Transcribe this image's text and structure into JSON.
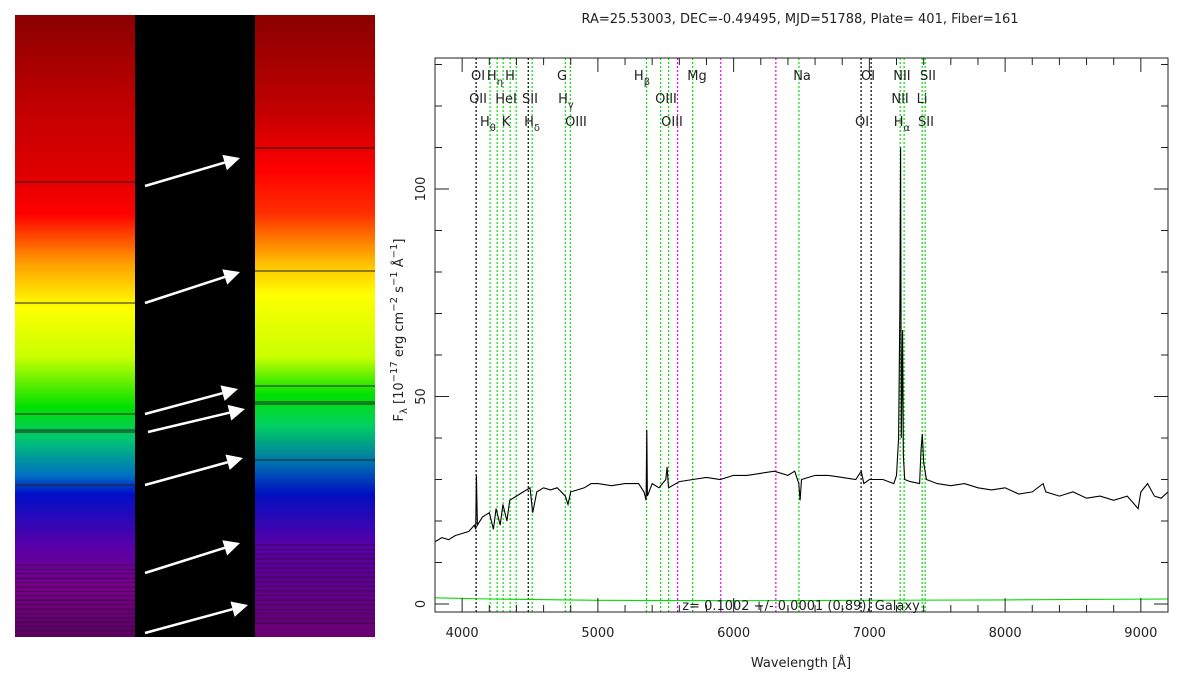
{
  "colors": {
    "spectrum": "#000000",
    "error": "#00dd00",
    "line_green": "#00e000",
    "line_black": "#000000",
    "line_magenta": "#ee00ee",
    "arrow": "#ffffff"
  },
  "chart_data": {
    "type": "line",
    "title": "RA=25.53003, DEC=-0.49495, MJD=51788, Plate= 401, Fiber=161",
    "xlabel": "Wavelength [Å]",
    "ylabel": {
      "main": "F",
      "sub": "λ",
      "a": " [10",
      "e1": "−17",
      "b": " erg cm",
      "e2": "−2",
      "c": " s",
      "e3": "−1",
      "d": " Å",
      "e4": "−1",
      "e": "]"
    },
    "xlim": [
      3800,
      9200
    ],
    "ylim": [
      -2,
      132
    ],
    "xticks": [
      "4000",
      "5000",
      "6000",
      "7000",
      "8000",
      "9000"
    ],
    "xtick_values": [
      4000,
      5000,
      6000,
      7000,
      8000,
      9000
    ],
    "yticks": [
      "0",
      "50",
      "100"
    ],
    "ytick_values": [
      0,
      50,
      100
    ],
    "annotation": "z= 0.1002 +/- 0.0001 (0.89), Galaxy",
    "series": [
      {
        "name": "flux",
        "color": "#000000",
        "points": [
          [
            3800,
            15
          ],
          [
            3850,
            16
          ],
          [
            3900,
            15.5
          ],
          [
            3950,
            16.5
          ],
          [
            4000,
            17
          ],
          [
            4050,
            17.5
          ],
          [
            4090,
            19
          ],
          [
            4100,
            18
          ],
          [
            4105,
            31
          ],
          [
            4112,
            19
          ],
          [
            4150,
            21
          ],
          [
            4200,
            22
          ],
          [
            4230,
            18
          ],
          [
            4250,
            23
          ],
          [
            4280,
            19
          ],
          [
            4300,
            24
          ],
          [
            4330,
            20
          ],
          [
            4350,
            25
          ],
          [
            4400,
            26
          ],
          [
            4450,
            27
          ],
          [
            4500,
            28
          ],
          [
            4520,
            22
          ],
          [
            4550,
            27
          ],
          [
            4600,
            28
          ],
          [
            4650,
            27.5
          ],
          [
            4700,
            28
          ],
          [
            4760,
            26
          ],
          [
            4780,
            24
          ],
          [
            4800,
            27
          ],
          [
            4850,
            27.5
          ],
          [
            4900,
            28
          ],
          [
            4950,
            29
          ],
          [
            5000,
            29
          ],
          [
            5100,
            28.5
          ],
          [
            5200,
            29
          ],
          [
            5300,
            29
          ],
          [
            5340,
            27
          ],
          [
            5355,
            25
          ],
          [
            5360,
            42
          ],
          [
            5365,
            26
          ],
          [
            5400,
            29
          ],
          [
            5450,
            28
          ],
          [
            5500,
            30
          ],
          [
            5510,
            33
          ],
          [
            5520,
            28
          ],
          [
            5600,
            29.5
          ],
          [
            5700,
            30
          ],
          [
            5800,
            30.5
          ],
          [
            5900,
            30
          ],
          [
            6000,
            31
          ],
          [
            6100,
            31
          ],
          [
            6200,
            31.5
          ],
          [
            6300,
            32
          ],
          [
            6400,
            31
          ],
          [
            6450,
            32
          ],
          [
            6480,
            29
          ],
          [
            6490,
            25
          ],
          [
            6500,
            30
          ],
          [
            6600,
            31
          ],
          [
            6700,
            31
          ],
          [
            6800,
            30.5
          ],
          [
            6900,
            30
          ],
          [
            6940,
            32
          ],
          [
            6960,
            29
          ],
          [
            7000,
            30
          ],
          [
            7100,
            30
          ],
          [
            7180,
            29
          ],
          [
            7200,
            31
          ],
          [
            7215,
            40
          ],
          [
            7225,
            72
          ],
          [
            7230,
            110
          ],
          [
            7235,
            40
          ],
          [
            7245,
            66
          ],
          [
            7250,
            36
          ],
          [
            7260,
            30
          ],
          [
            7300,
            29.5
          ],
          [
            7370,
            29
          ],
          [
            7380,
            37
          ],
          [
            7390,
            41
          ],
          [
            7400,
            34
          ],
          [
            7420,
            30
          ],
          [
            7500,
            29
          ],
          [
            7600,
            28.5
          ],
          [
            7700,
            29
          ],
          [
            7800,
            28
          ],
          [
            7900,
            27.5
          ],
          [
            8000,
            28
          ],
          [
            8100,
            26.5
          ],
          [
            8200,
            27
          ],
          [
            8280,
            29
          ],
          [
            8300,
            27
          ],
          [
            8400,
            26
          ],
          [
            8500,
            27
          ],
          [
            8600,
            25.5
          ],
          [
            8700,
            26
          ],
          [
            8800,
            25
          ],
          [
            8900,
            26
          ],
          [
            8980,
            23
          ],
          [
            9000,
            27
          ],
          [
            9050,
            29
          ],
          [
            9100,
            26
          ],
          [
            9150,
            25.5
          ],
          [
            9200,
            27
          ]
        ]
      },
      {
        "name": "error",
        "color": "#00dd00",
        "points": [
          [
            3800,
            1.5
          ],
          [
            4200,
            1.2
          ],
          [
            5000,
            0.9
          ],
          [
            6000,
            0.8
          ],
          [
            7000,
            0.9
          ],
          [
            8000,
            1.0
          ],
          [
            9200,
            1.2
          ]
        ]
      }
    ],
    "vlines": [
      {
        "x": 4103,
        "color": "black"
      },
      {
        "x": 4206,
        "color": "green"
      },
      {
        "x": 4258,
        "color": "green"
      },
      {
        "x": 4302,
        "color": "green"
      },
      {
        "x": 4354,
        "color": "green"
      },
      {
        "x": 4398,
        "color": "green"
      },
      {
        "x": 4487,
        "color": "black"
      },
      {
        "x": 4516,
        "color": "green"
      },
      {
        "x": 4760,
        "color": "green"
      },
      {
        "x": 4797,
        "color": "green"
      },
      {
        "x": 5358,
        "color": "green"
      },
      {
        "x": 5462,
        "color": "green"
      },
      {
        "x": 5521,
        "color": "green"
      },
      {
        "x": 5587,
        "color": "magenta"
      },
      {
        "x": 5698,
        "color": "green"
      },
      {
        "x": 5905,
        "color": "magenta"
      },
      {
        "x": 6311,
        "color": "magenta"
      },
      {
        "x": 6481,
        "color": "green"
      },
      {
        "x": 6939,
        "color": "black"
      },
      {
        "x": 7013,
        "color": "black"
      },
      {
        "x": 7227,
        "color": "green"
      },
      {
        "x": 7256,
        "color": "green"
      },
      {
        "x": 7389,
        "color": "green"
      },
      {
        "x": 7411,
        "color": "green"
      }
    ],
    "line_labels": [
      {
        "text": "OI",
        "sub": "",
        "x": 4117,
        "row": 1
      },
      {
        "text": "H",
        "sub": "η",
        "x": 4242,
        "row": 1
      },
      {
        "text": "H",
        "sub": "",
        "x": 4353,
        "row": 1
      },
      {
        "text": "G",
        "sub": "",
        "x": 4736,
        "row": 1
      },
      {
        "text": "H",
        "sub": "β",
        "x": 5325,
        "row": 1
      },
      {
        "text": "Mg",
        "sub": "",
        "x": 5730,
        "row": 1
      },
      {
        "text": "OII",
        "sub": "",
        "x": 4117,
        "row": 2
      },
      {
        "text": "HeI",
        "sub": "",
        "x": 4323,
        "row": 2
      },
      {
        "text": "SII",
        "sub": "",
        "x": 4500,
        "row": 2
      },
      {
        "text": "H",
        "sub": "γ",
        "x": 4765,
        "row": 2
      },
      {
        "text": "OIII",
        "sub": "",
        "x": 5502,
        "row": 2
      },
      {
        "text": "H",
        "sub": "θ",
        "x": 4190,
        "row": 3
      },
      {
        "text": "K",
        "sub": "",
        "x": 4323,
        "row": 3
      },
      {
        "text": "H",
        "sub": "δ",
        "x": 4515,
        "row": 3
      },
      {
        "text": "OIII",
        "sub": "",
        "x": 4839,
        "row": 3
      },
      {
        "text": "OIII",
        "sub": "",
        "x": 5546,
        "row": 3
      },
      {
        "text": "Na",
        "sub": "",
        "x": 6504,
        "row": 1
      },
      {
        "text": "OI",
        "sub": "",
        "x": 6990,
        "row": 1
      },
      {
        "text": "NII",
        "sub": "",
        "x": 7240,
        "row": 1
      },
      {
        "text": "SII",
        "sub": "",
        "x": 7432,
        "row": 1
      },
      {
        "text": "NII",
        "sub": "",
        "x": 7226,
        "row": 2
      },
      {
        "text": "Li",
        "sub": "",
        "x": 7388,
        "row": 2
      },
      {
        "text": "OI",
        "sub": "",
        "x": 6946,
        "row": 3
      },
      {
        "text": "H",
        "sub": "α",
        "x": 7240,
        "row": 3
      },
      {
        "text": "SII",
        "sub": "",
        "x": 7417,
        "row": 3
      }
    ]
  }
}
